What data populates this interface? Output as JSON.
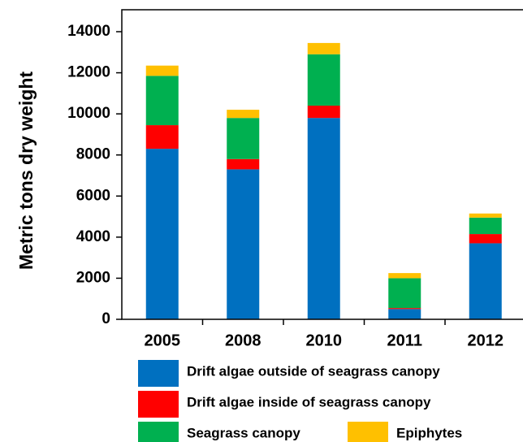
{
  "chart_data": {
    "type": "stacked-bar",
    "y_label": "Metric tons dry weight",
    "categories": [
      "2005",
      "2008",
      "2010",
      "2011",
      "2012"
    ],
    "series": [
      {
        "name": "Drift algae outside of seagrass canopy",
        "color": "#0070c0",
        "values": [
          8300,
          7300,
          9800,
          500,
          3700
        ]
      },
      {
        "name": "Drift algae inside of seagrass canopy",
        "color": "#ff0000",
        "values": [
          1150,
          500,
          600,
          50,
          450
        ]
      },
      {
        "name": "Seagrass canopy",
        "color": "#00b050",
        "values": [
          2400,
          2000,
          2500,
          1450,
          800
        ]
      },
      {
        "name": "Epiphytes",
        "color": "#ffc000",
        "values": [
          500,
          400,
          550,
          250,
          200
        ]
      }
    ],
    "ylim": [
      0,
      14000
    ],
    "yticks": [
      0,
      2000,
      4000,
      6000,
      8000,
      10000,
      12000,
      14000
    ]
  }
}
